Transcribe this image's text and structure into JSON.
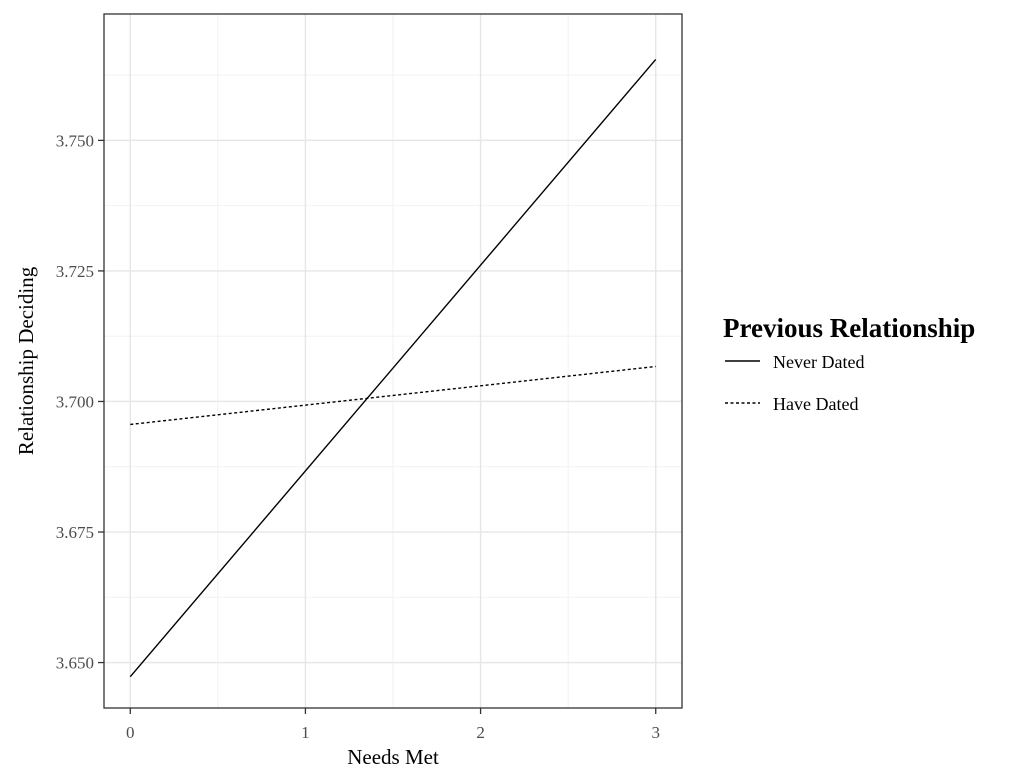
{
  "chart_data": {
    "type": "line",
    "xlabel": "Needs Met",
    "ylabel": "Relationship Deciding",
    "xlim": [
      -0.15,
      3.15
    ],
    "ylim": [
      3.6413,
      3.7742
    ],
    "x_ticks": [
      0,
      1,
      2,
      3
    ],
    "x_tick_labels": [
      "0",
      "1",
      "2",
      "3"
    ],
    "y_ticks": [
      3.65,
      3.675,
      3.7,
      3.725,
      3.75
    ],
    "y_tick_labels": [
      "3.650",
      "3.675",
      "3.700",
      "3.725",
      "3.750"
    ],
    "grid": true,
    "legend": {
      "title": "Previous Relationship",
      "position": "right"
    },
    "series": [
      {
        "name": "Never Dated",
        "linestyle": "solid",
        "color": "#000000",
        "x": [
          0,
          3
        ],
        "y": [
          3.6473,
          3.7655
        ]
      },
      {
        "name": "Have Dated",
        "linestyle": "dotted",
        "color": "#000000",
        "x": [
          0,
          3
        ],
        "y": [
          3.6956,
          3.7067
        ]
      }
    ]
  }
}
